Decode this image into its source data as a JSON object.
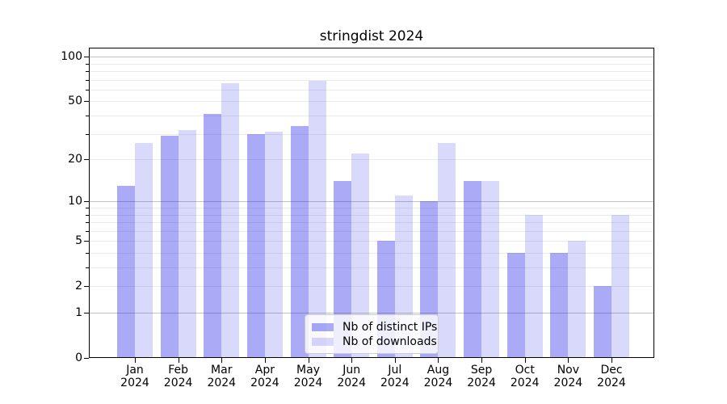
{
  "chart_data": {
    "type": "bar",
    "title": "stringdist 2024",
    "scale": "log1p",
    "grid": "horizontal",
    "legend_position": "lower center",
    "categories": [
      "Jan",
      "Feb",
      "Mar",
      "Apr",
      "May",
      "Jun",
      "Jul",
      "Aug",
      "Sep",
      "Oct",
      "Nov",
      "Dec"
    ],
    "year": "2024",
    "series": [
      {
        "name": "Nb of distinct IPs",
        "key": "ips",
        "values": [
          13,
          29,
          41,
          30,
          34,
          14,
          5,
          10,
          14,
          4,
          4,
          2
        ]
      },
      {
        "name": "Nb of downloads",
        "key": "downloads",
        "values": [
          26,
          32,
          66,
          31,
          69,
          22,
          11,
          26,
          14,
          8,
          5,
          8
        ]
      }
    ],
    "y_tick_labels": [
      0,
      1,
      2,
      5,
      10,
      20,
      50,
      100
    ],
    "y_major_gridlines": [
      1,
      10,
      100
    ],
    "y_minor_gridlines": [
      2,
      3,
      4,
      5,
      6,
      7,
      8,
      9,
      20,
      30,
      40,
      50,
      60,
      70,
      80,
      90
    ],
    "ylim": [
      0,
      115
    ]
  },
  "colors": {
    "bar_base": "#1919e6",
    "ips_alpha": 0.37,
    "downloads_alpha": 0.165,
    "grid_major": "#c3c3c3",
    "grid_minor": "#ebebeb",
    "spine": "#000000",
    "legend_border": "#cccccc"
  }
}
